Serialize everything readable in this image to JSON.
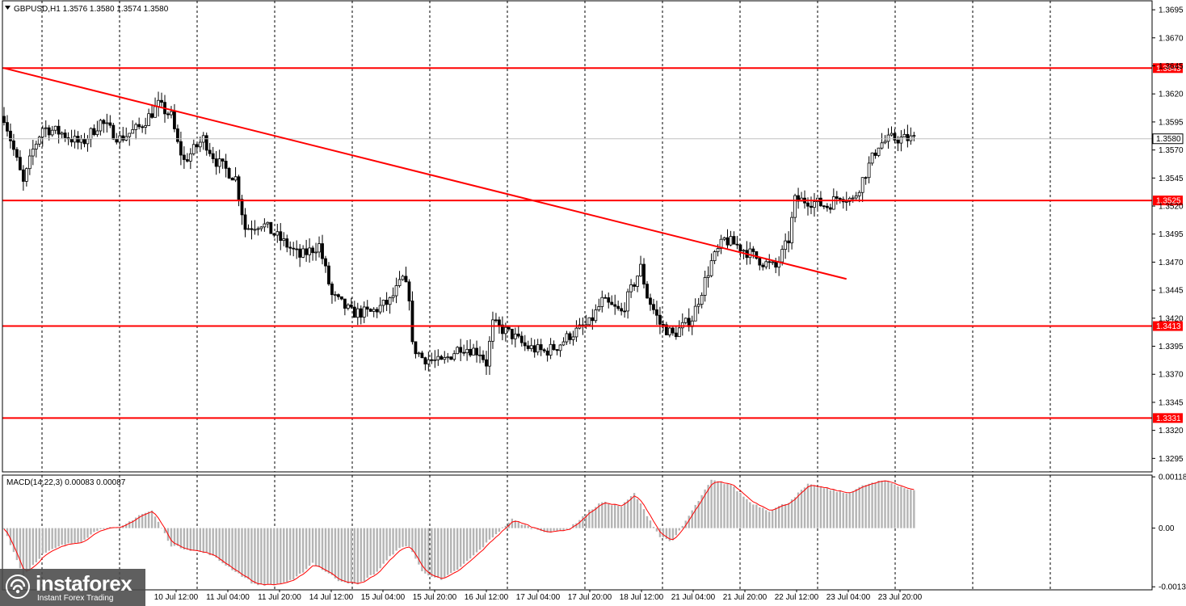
{
  "chart_data": [
    {
      "type": "candlestick",
      "title": "GBPUSD,H1  1.3576 1.3580 1.3574 1.3580",
      "price_ticks": [
        "1.3695",
        "1.3670",
        "1.3645",
        "1.3620",
        "1.3595",
        "1.3570",
        "1.3545",
        "1.3520",
        "1.3495",
        "1.3470",
        "1.3445",
        "1.3420",
        "1.3395",
        "1.3370",
        "1.3345",
        "1.3320",
        "1.3295"
      ],
      "ylim": [
        1.3283,
        1.3703
      ],
      "time_labels": [
        "10 Jul 12:00",
        "11 Jul 04:00",
        "11 Jul 20:00",
        "14 Jul 12:00",
        "15 Jul 04:00",
        "15 Jul 20:00",
        "16 Jul 12:00",
        "17 Jul 04:00",
        "17 Jul 20:00",
        "18 Jul 12:00",
        "21 Jul 04:00",
        "21 Jul 20:00",
        "22 Jul 12:00",
        "23 Jul 04:00",
        "23 Jul 20:00"
      ],
      "current_price": {
        "label": "1.3580",
        "value": 1.358
      },
      "levels": [
        {
          "label": "1.3643",
          "value": 1.3643
        },
        {
          "label": "1.3525",
          "value": 1.3525
        },
        {
          "label": "1.3413",
          "value": 1.3413
        },
        {
          "label": "1.3331",
          "value": 1.3331
        }
      ],
      "trendline": {
        "start": {
          "bar": 0,
          "price": 1.3643
        },
        "end": {
          "bar": 262,
          "price": 1.3455
        }
      },
      "anchors": [
        [
          0,
          1.36
        ],
        [
          4,
          1.356
        ],
        [
          6,
          1.354
        ],
        [
          9,
          1.357
        ],
        [
          12,
          1.359
        ],
        [
          18,
          1.3585
        ],
        [
          24,
          1.3575
        ],
        [
          30,
          1.3595
        ],
        [
          36,
          1.358
        ],
        [
          42,
          1.359
        ],
        [
          48,
          1.361
        ],
        [
          52,
          1.36
        ],
        [
          54,
          1.3575
        ],
        [
          56,
          1.356
        ],
        [
          62,
          1.358
        ],
        [
          66,
          1.356
        ],
        [
          72,
          1.3545
        ],
        [
          75,
          1.35
        ],
        [
          80,
          1.3505
        ],
        [
          86,
          1.349
        ],
        [
          92,
          1.3475
        ],
        [
          98,
          1.3485
        ],
        [
          102,
          1.344
        ],
        [
          108,
          1.3425
        ],
        [
          114,
          1.3425
        ],
        [
          120,
          1.3435
        ],
        [
          124,
          1.3455
        ],
        [
          126,
          1.344
        ],
        [
          127,
          1.3395
        ],
        [
          130,
          1.3385
        ],
        [
          136,
          1.338
        ],
        [
          142,
          1.3395
        ],
        [
          148,
          1.339
        ],
        [
          150,
          1.338
        ],
        [
          152,
          1.3415
        ],
        [
          158,
          1.3405
        ],
        [
          162,
          1.3395
        ],
        [
          168,
          1.339
        ],
        [
          172,
          1.3395
        ],
        [
          176,
          1.3405
        ],
        [
          182,
          1.3415
        ],
        [
          186,
          1.3435
        ],
        [
          192,
          1.3425
        ],
        [
          198,
          1.3465
        ],
        [
          200,
          1.344
        ],
        [
          204,
          1.3415
        ],
        [
          208,
          1.3405
        ],
        [
          214,
          1.342
        ],
        [
          220,
          1.347
        ],
        [
          224,
          1.349
        ],
        [
          228,
          1.3485
        ],
        [
          236,
          1.347
        ],
        [
          240,
          1.3465
        ],
        [
          244,
          1.349
        ],
        [
          246,
          1.3525
        ],
        [
          250,
          1.3525
        ],
        [
          256,
          1.352
        ],
        [
          260,
          1.353
        ],
        [
          264,
          1.3525
        ],
        [
          268,
          1.355
        ],
        [
          272,
          1.3575
        ],
        [
          276,
          1.358
        ],
        [
          282,
          1.358
        ]
      ],
      "macd": {
        "label": "MACD(14,22,3) 0.00083 0.00087",
        "ticks": [
          "0.00118",
          "0.00",
          "-0.00135"
        ],
        "ylim": [
          -0.00142,
          0.00122
        ],
        "anchors": [
          [
            0,
            0.0
          ],
          [
            6,
            -0.0011
          ],
          [
            12,
            -0.0006
          ],
          [
            18,
            -0.0004
          ],
          [
            24,
            -0.0003
          ],
          [
            30,
            0.0
          ],
          [
            36,
            0.0
          ],
          [
            42,
            0.0003
          ],
          [
            46,
            0.0004
          ],
          [
            52,
            -0.0004
          ],
          [
            58,
            -0.0005
          ],
          [
            64,
            -0.0006
          ],
          [
            72,
            -0.001
          ],
          [
            78,
            -0.0013
          ],
          [
            84,
            -0.0013
          ],
          [
            90,
            -0.0012
          ],
          [
            96,
            -0.0008
          ],
          [
            104,
            -0.0012
          ],
          [
            110,
            -0.0013
          ],
          [
            116,
            -0.001
          ],
          [
            122,
            -0.0005
          ],
          [
            126,
            -0.0004
          ],
          [
            130,
            -0.001
          ],
          [
            136,
            -0.0012
          ],
          [
            142,
            -0.0009
          ],
          [
            148,
            -0.0005
          ],
          [
            152,
            -0.0002
          ],
          [
            158,
            0.0002
          ],
          [
            164,
            0.0
          ],
          [
            170,
            -0.0001
          ],
          [
            176,
            0.0
          ],
          [
            182,
            0.0004
          ],
          [
            186,
            0.0006
          ],
          [
            192,
            0.0005
          ],
          [
            196,
            0.0008
          ],
          [
            200,
            0.0003
          ],
          [
            204,
            -0.0002
          ],
          [
            208,
            -0.0003
          ],
          [
            214,
            0.0004
          ],
          [
            220,
            0.0011
          ],
          [
            226,
            0.001
          ],
          [
            232,
            0.0006
          ],
          [
            238,
            0.0004
          ],
          [
            244,
            0.0006
          ],
          [
            250,
            0.001
          ],
          [
            256,
            0.0009
          ],
          [
            262,
            0.0008
          ],
          [
            268,
            0.001
          ],
          [
            274,
            0.0011
          ],
          [
            282,
            0.00087
          ]
        ]
      }
    }
  ],
  "watermark": {
    "brand": "instaforex",
    "tagline": "Instant Forex Trading"
  },
  "colors": {
    "level": "#ff0000",
    "grid": "#000000",
    "histogram": "#b4b4b4",
    "signal": "#ff0000",
    "price_tag_bg": "#ff0000"
  }
}
